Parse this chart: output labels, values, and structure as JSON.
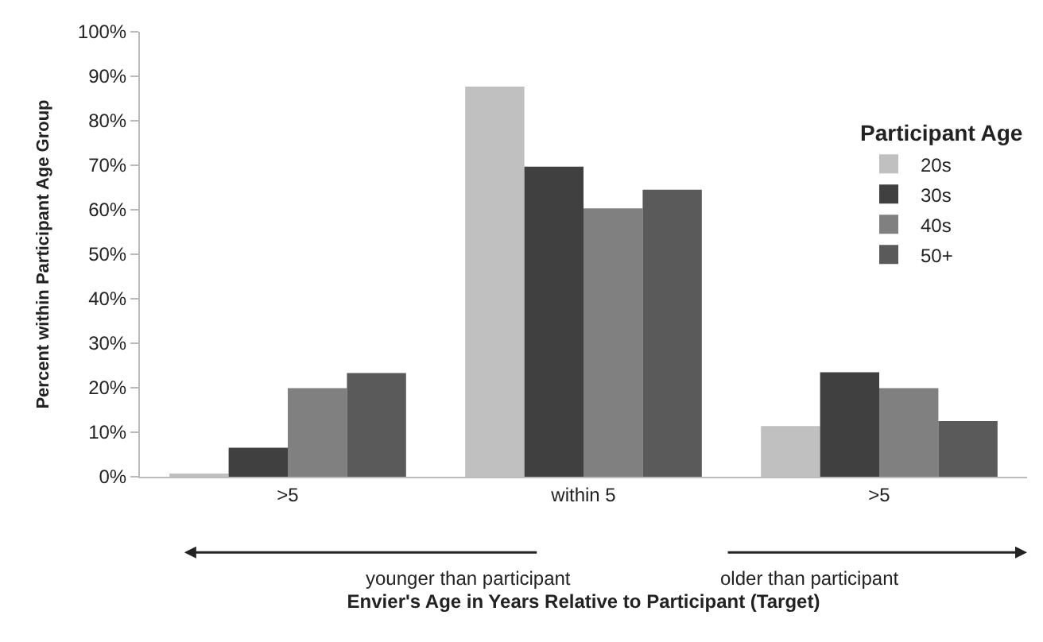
{
  "chart_data": {
    "type": "bar",
    "xlabel": "Envier's Age in Years Relative to Participant (Target)",
    "ylabel": "Percent within Participant Age Group",
    "legend_title": "Participant Age",
    "categories": [
      ">5",
      "within 5",
      ">5"
    ],
    "series": [
      {
        "name": "20s",
        "color": "#c0c0c0",
        "values": [
          0.4,
          87.7,
          11.4
        ]
      },
      {
        "name": "30s",
        "color": "#404040",
        "values": [
          6.5,
          69.7,
          23.5
        ]
      },
      {
        "name": "40s",
        "color": "#808080",
        "values": [
          19.9,
          60.3,
          19.9
        ]
      },
      {
        "name": "50+",
        "color": "#5a5a5a",
        "values": [
          23.3,
          64.5,
          12.5
        ]
      }
    ],
    "ylim": [
      0,
      100
    ],
    "yticks": [
      {
        "value": 0,
        "label": "0%"
      },
      {
        "value": 10,
        "label": "10%"
      },
      {
        "value": 20,
        "label": "20%"
      },
      {
        "value": 30,
        "label": "30%"
      },
      {
        "value": 40,
        "label": "40%"
      },
      {
        "value": 50,
        "label": "50%"
      },
      {
        "value": 60,
        "label": "60%"
      },
      {
        "value": 70,
        "label": "70%"
      },
      {
        "value": 80,
        "label": "80%"
      },
      {
        "value": 90,
        "label": "90%"
      },
      {
        "value": 100,
        "label": "100%"
      }
    ],
    "annotations": [
      "younger than participant",
      "older than participant"
    ],
    "legend": "right"
  }
}
